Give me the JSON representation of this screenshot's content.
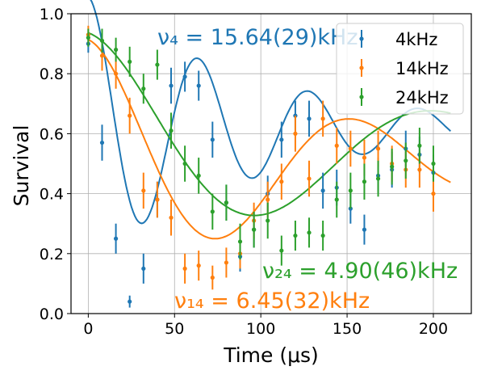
{
  "chart_data": {
    "type": "scatter",
    "xlabel": "Time (μs)",
    "ylabel": "Survival",
    "xlim": [
      -10,
      222
    ],
    "ylim": [
      0,
      1.0
    ],
    "xticks": [
      0,
      50,
      100,
      150,
      200
    ],
    "xtick_labels": [
      "0",
      "50",
      "100",
      "150",
      "200"
    ],
    "yticks": [
      0.0,
      0.2,
      0.4,
      0.6,
      0.8,
      1.0
    ],
    "ytick_labels": [
      "0.0",
      "0.2",
      "0.4",
      "0.6",
      "0.8",
      "1.0"
    ],
    "grid": true,
    "legend_position": "top-right",
    "series": [
      {
        "name": "4kHz",
        "color": "#1f77b4",
        "points": [
          {
            "x": 0,
            "y": 0.9,
            "err": 0.03
          },
          {
            "x": 8,
            "y": 0.57,
            "err": 0.06
          },
          {
            "x": 16,
            "y": 0.25,
            "err": 0.05
          },
          {
            "x": 24,
            "y": 0.04,
            "err": 0.02
          },
          {
            "x": 32,
            "y": 0.15,
            "err": 0.05
          },
          {
            "x": 40,
            "y": 0.38,
            "err": 0.06
          },
          {
            "x": 48,
            "y": 0.76,
            "err": 0.06
          },
          {
            "x": 56,
            "y": 0.79,
            "err": 0.05
          },
          {
            "x": 64,
            "y": 0.76,
            "err": 0.05
          },
          {
            "x": 72,
            "y": 0.58,
            "err": 0.06
          },
          {
            "x": 80,
            "y": 0.37,
            "err": 0.06
          },
          {
            "x": 88,
            "y": 0.19,
            "err": 0.05
          },
          {
            "x": 96,
            "y": 0.28,
            "err": 0.06
          },
          {
            "x": 104,
            "y": 0.4,
            "err": 0.06
          },
          {
            "x": 112,
            "y": 0.58,
            "err": 0.06
          },
          {
            "x": 120,
            "y": 0.66,
            "err": 0.05
          },
          {
            "x": 128,
            "y": 0.65,
            "err": 0.06
          },
          {
            "x": 136,
            "y": 0.41,
            "err": 0.06
          },
          {
            "x": 144,
            "y": 0.42,
            "err": 0.06
          },
          {
            "x": 152,
            "y": 0.35,
            "err": 0.05
          },
          {
            "x": 160,
            "y": 0.28,
            "err": 0.05
          },
          {
            "x": 168,
            "y": 0.46,
            "err": 0.06
          },
          {
            "x": 176,
            "y": 0.48,
            "err": 0.06
          },
          {
            "x": 184,
            "y": 0.55,
            "err": 0.06
          },
          {
            "x": 192,
            "y": 0.53,
            "err": 0.06
          },
          {
            "x": 200,
            "y": 0.47,
            "err": 0.06
          }
        ],
        "fit_label": "ν₄ = 15.64(29)kHz",
        "fit": {
          "A": 0.475,
          "B": 0.62,
          "freq_khz": 15.64,
          "tau": 100,
          "phase": 0.0,
          "offset": 0.0
        }
      },
      {
        "name": "14kHz",
        "color": "#ff7f0e",
        "points": [
          {
            "x": 0,
            "y": 0.93,
            "err": 0.03
          },
          {
            "x": 8,
            "y": 0.86,
            "err": 0.05
          },
          {
            "x": 16,
            "y": 0.8,
            "err": 0.05
          },
          {
            "x": 24,
            "y": 0.66,
            "err": 0.06
          },
          {
            "x": 32,
            "y": 0.41,
            "err": 0.06
          },
          {
            "x": 40,
            "y": 0.38,
            "err": 0.06
          },
          {
            "x": 48,
            "y": 0.32,
            "err": 0.06
          },
          {
            "x": 56,
            "y": 0.15,
            "err": 0.05
          },
          {
            "x": 64,
            "y": 0.16,
            "err": 0.05
          },
          {
            "x": 72,
            "y": 0.12,
            "err": 0.04
          },
          {
            "x": 80,
            "y": 0.17,
            "err": 0.05
          },
          {
            "x": 88,
            "y": 0.2,
            "err": 0.05
          },
          {
            "x": 96,
            "y": 0.31,
            "err": 0.06
          },
          {
            "x": 104,
            "y": 0.38,
            "err": 0.06
          },
          {
            "x": 112,
            "y": 0.44,
            "err": 0.06
          },
          {
            "x": 120,
            "y": 0.6,
            "err": 0.06
          },
          {
            "x": 128,
            "y": 0.45,
            "err": 0.06
          },
          {
            "x": 136,
            "y": 0.65,
            "err": 0.06
          },
          {
            "x": 144,
            "y": 0.56,
            "err": 0.06
          },
          {
            "x": 152,
            "y": 0.55,
            "err": 0.06
          },
          {
            "x": 160,
            "y": 0.52,
            "err": 0.06
          },
          {
            "x": 168,
            "y": 0.55,
            "err": 0.06
          },
          {
            "x": 176,
            "y": 0.5,
            "err": 0.06
          },
          {
            "x": 184,
            "y": 0.48,
            "err": 0.06
          },
          {
            "x": 192,
            "y": 0.48,
            "err": 0.06
          },
          {
            "x": 200,
            "y": 0.4,
            "err": 0.06
          }
        ],
        "fit_label": "ν₁₄ = 6.45(32)kHz",
        "fit": {
          "A": 0.45,
          "B": 0.5,
          "freq_khz": 6.45,
          "tau": 150,
          "phase": 0.0,
          "offset": 0.0
        }
      },
      {
        "name": "24kHz",
        "color": "#2ca02c",
        "points": [
          {
            "x": 0,
            "y": 0.92,
            "err": 0.03
          },
          {
            "x": 8,
            "y": 0.91,
            "err": 0.04
          },
          {
            "x": 16,
            "y": 0.88,
            "err": 0.04
          },
          {
            "x": 24,
            "y": 0.84,
            "err": 0.05
          },
          {
            "x": 32,
            "y": 0.75,
            "err": 0.05
          },
          {
            "x": 40,
            "y": 0.83,
            "err": 0.05
          },
          {
            "x": 48,
            "y": 0.61,
            "err": 0.06
          },
          {
            "x": 56,
            "y": 0.5,
            "err": 0.06
          },
          {
            "x": 64,
            "y": 0.46,
            "err": 0.06
          },
          {
            "x": 72,
            "y": 0.34,
            "err": 0.06
          },
          {
            "x": 80,
            "y": 0.37,
            "err": 0.06
          },
          {
            "x": 88,
            "y": 0.24,
            "err": 0.06
          },
          {
            "x": 96,
            "y": 0.28,
            "err": 0.06
          },
          {
            "x": 104,
            "y": 0.31,
            "err": 0.06
          },
          {
            "x": 112,
            "y": 0.21,
            "err": 0.05
          },
          {
            "x": 120,
            "y": 0.26,
            "err": 0.05
          },
          {
            "x": 128,
            "y": 0.27,
            "err": 0.05
          },
          {
            "x": 136,
            "y": 0.26,
            "err": 0.05
          },
          {
            "x": 144,
            "y": 0.38,
            "err": 0.06
          },
          {
            "x": 152,
            "y": 0.41,
            "err": 0.06
          },
          {
            "x": 160,
            "y": 0.44,
            "err": 0.06
          },
          {
            "x": 168,
            "y": 0.45,
            "err": 0.06
          },
          {
            "x": 176,
            "y": 0.49,
            "err": 0.06
          },
          {
            "x": 184,
            "y": 0.51,
            "err": 0.06
          },
          {
            "x": 192,
            "y": 0.56,
            "err": 0.06
          },
          {
            "x": 200,
            "y": 0.5,
            "err": 0.06
          }
        ],
        "fit_label": "ν₂₄ = 4.90(46)kHz",
        "fit": {
          "A": 0.42,
          "B": 0.55,
          "freq_khz": 4.9,
          "tau": 180,
          "phase": 0.0,
          "offset": 0.0
        }
      }
    ]
  }
}
